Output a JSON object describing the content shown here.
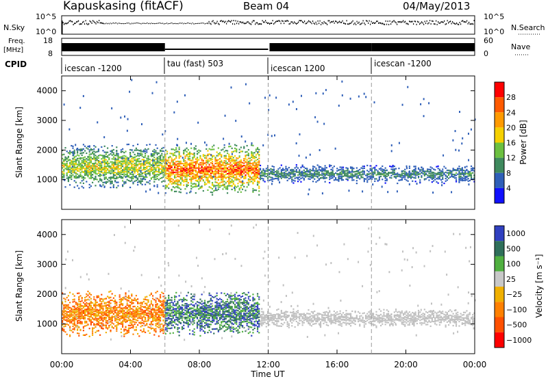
{
  "header": {
    "station": "Kapuskasing (fitACF)",
    "beam": "Beam 04",
    "date": "04/May/2013"
  },
  "noise_panel": {
    "left_label": "N.Sky",
    "left_ticks": [
      "10^5",
      "10^0"
    ],
    "right_label": "N.Search",
    "right_ticks": [
      "10^5",
      "10^0"
    ]
  },
  "freq_panel": {
    "left_label_line1": "Freq.",
    "left_label_line2": "[MHz]",
    "left_ticks": [
      "18",
      "8"
    ],
    "right_label": "Nave",
    "right_ticks": [
      "60",
      "0"
    ]
  },
  "cpid_panel": {
    "label": "CPID",
    "segments": [
      {
        "label": "icescan -1200",
        "start_hour": 0,
        "end_hour": 6
      },
      {
        "label": "tau (fast) 503",
        "start_hour": 6,
        "end_hour": 12
      },
      {
        "label": "icescan 1200",
        "start_hour": 12,
        "end_hour": 18
      },
      {
        "label": "icescan -1200",
        "start_hour": 18,
        "end_hour": 24
      }
    ]
  },
  "colors": {
    "power_scale": [
      "#1010ff",
      "#2f5fb8",
      "#3f8a5e",
      "#6cc040",
      "#f5d000",
      "#ff9a00",
      "#ff5a00",
      "#ff0000"
    ],
    "velocity_scale": [
      "#3040c0",
      "#2f6f5a",
      "#50b040",
      "#c8c8c8",
      "#f0b000",
      "#ff8000",
      "#ff5000",
      "#ff0000"
    ],
    "ground_scatter": "#c0c0c0"
  },
  "chart_data": [
    {
      "type": "heatmap",
      "panel": "power",
      "xlabel": "Time UT",
      "ylabel": "Slant Range [km]",
      "xlim": [
        0,
        24
      ],
      "ylim": [
        0,
        4500
      ],
      "y_ticks": [
        "1000",
        "2000",
        "3000",
        "4000"
      ],
      "colorbar": {
        "label": "Power [dB]",
        "range": [
          0,
          32
        ],
        "ticks": [
          "4",
          "8",
          "12",
          "16",
          "20",
          "24",
          "28"
        ]
      },
      "scatter_regions": [
        {
          "start_hour": 0,
          "end_hour": 6,
          "range_km": [
            700,
            2200
          ],
          "peak_db": 20
        },
        {
          "start_hour": 6,
          "end_hour": 11.5,
          "range_km": [
            500,
            2200
          ],
          "peak_db": 30
        },
        {
          "start_hour": 11.5,
          "end_hour": 24,
          "range_km": [
            900,
            1500
          ],
          "peak_db": 12
        }
      ]
    },
    {
      "type": "heatmap",
      "panel": "velocity",
      "xlabel": "Time UT",
      "ylabel": "Slant Range [km]",
      "xlim": [
        0,
        24
      ],
      "ylim": [
        0,
        4500
      ],
      "y_ticks": [
        "1000",
        "2000",
        "3000",
        "4000"
      ],
      "x_ticks": [
        "00:00",
        "04:00",
        "08:00",
        "12:00",
        "16:00",
        "20:00",
        "00:00"
      ],
      "colorbar": {
        "label": "Velocity [m s⁻¹]",
        "ticks": [
          "1000",
          "500",
          "100",
          "25",
          "−25",
          "−100",
          "−500",
          "−1000"
        ]
      },
      "scatter_regions": [
        {
          "start_hour": 0,
          "end_hour": 6,
          "range_km": [
            600,
            2100
          ],
          "typical_velocity": -200
        },
        {
          "start_hour": 6,
          "end_hour": 11.5,
          "range_km": [
            600,
            2100
          ],
          "typical_velocity": 200
        },
        {
          "start_hour": 11.5,
          "end_hour": 24,
          "range_km": [
            900,
            1500
          ],
          "typical_velocity": 0
        }
      ]
    }
  ]
}
